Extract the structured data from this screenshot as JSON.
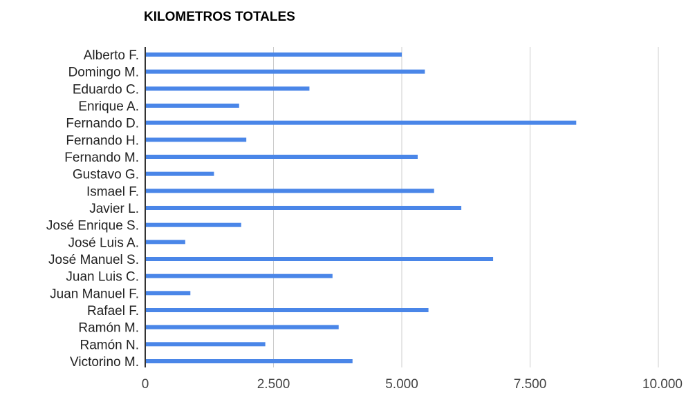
{
  "chart_data": {
    "type": "bar",
    "orientation": "horizontal",
    "title": "KILOMETROS TOTALES",
    "xlabel": "",
    "ylabel": "",
    "categories": [
      "Alberto F.",
      "Domingo M.",
      "Eduardo C.",
      "Enrique A.",
      "Fernando D.",
      "Fernando H.",
      "Fernando M.",
      "Gustavo G.",
      "Ismael F.",
      "Javier L.",
      "José Enrique S.",
      "José Luis A.",
      "José Manuel S.",
      "Juan Luis C.",
      "Juan Manuel F.",
      "Rafael F.",
      "Ramón M.",
      "Ramón N.",
      "Victorino M."
    ],
    "values": [
      5000,
      5450,
      3200,
      1830,
      8400,
      1970,
      5310,
      1340,
      5630,
      6160,
      1870,
      780,
      6780,
      3650,
      880,
      5520,
      3770,
      2340,
      4040
    ],
    "xlim": [
      0,
      10000
    ],
    "ticks": [
      0,
      2500,
      5000,
      7500,
      10000
    ],
    "tick_labels": [
      "0",
      "2.500",
      "5.000",
      "7.500",
      "10.000"
    ],
    "grid": true,
    "legend": "none",
    "bar_color": "#4a86e8",
    "grid_color": "#cccccc",
    "axis_color": "#333333"
  }
}
